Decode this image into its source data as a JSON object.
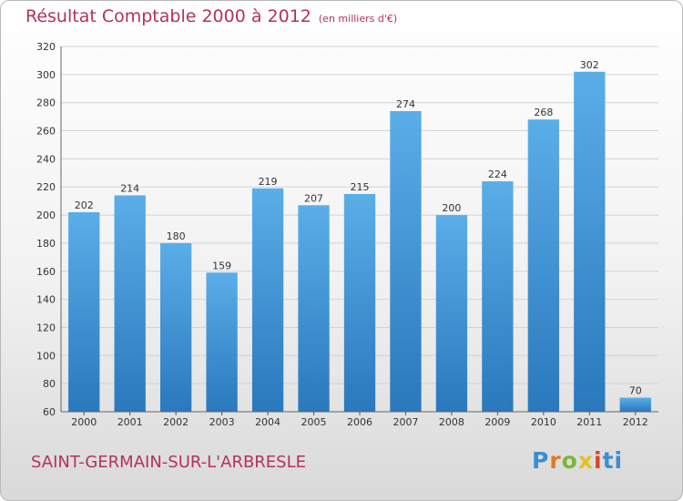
{
  "chart_data": {
    "type": "bar",
    "title": "Résultat Comptable 2000 à 2012",
    "subtitle": "(en milliers d'€)",
    "xlabel": "",
    "ylabel": "",
    "categories": [
      "2000",
      "2001",
      "2002",
      "2003",
      "2004",
      "2005",
      "2006",
      "2007",
      "2008",
      "2009",
      "2010",
      "2011",
      "2012"
    ],
    "values": [
      202,
      214,
      180,
      159,
      219,
      207,
      215,
      274,
      200,
      224,
      268,
      302,
      70
    ],
    "ylim": [
      60,
      320
    ],
    "yticks": [
      60,
      80,
      100,
      120,
      140,
      160,
      180,
      200,
      220,
      240,
      260,
      280,
      300,
      320
    ],
    "grid": true,
    "legend": "none",
    "bar_color": "#4f9fdc"
  },
  "footer": {
    "commune": "SAINT-GERMAIN-SUR-L'ARBRESLE",
    "logo_letters": [
      "P",
      "r",
      "o",
      "x",
      "i",
      "t",
      "i"
    ]
  }
}
